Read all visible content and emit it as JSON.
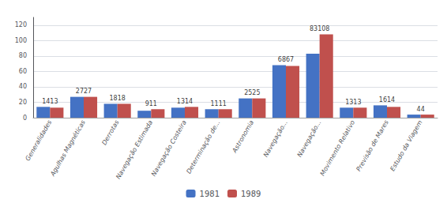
{
  "chart_data": {
    "type": "bar",
    "categories": [
      "Generalidades",
      "Agulhas Magnéticas",
      "Derrotas",
      "Navegação Estimada",
      "Navegação Costeira",
      "Determinação de...",
      "Astronomia",
      "Navegação...",
      "Navegação...",
      "Movimento Relativo",
      "Previsão de Mares",
      "Estudo da Viagem"
    ],
    "series": [
      {
        "name": "1981",
        "color": "#4472C4",
        "values": [
          14,
          27,
          18,
          9,
          13,
          11,
          25,
          68,
          83,
          13,
          16,
          4
        ]
      },
      {
        "name": "1989",
        "color": "#C0504D",
        "values": [
          13,
          27,
          18,
          11,
          14,
          11,
          25,
          67,
          108,
          13,
          14,
          4
        ]
      }
    ],
    "annotations": [
      "1413",
      "2727",
      "1818",
      "911",
      "1314",
      "1111",
      "2525",
      "6867",
      "83108",
      "1313",
      "1614",
      "44"
    ],
    "ylim": [
      0,
      130
    ],
    "yticks": [
      0,
      20,
      40,
      60,
      80,
      100,
      120
    ],
    "grid": true,
    "legend": "lower center"
  }
}
